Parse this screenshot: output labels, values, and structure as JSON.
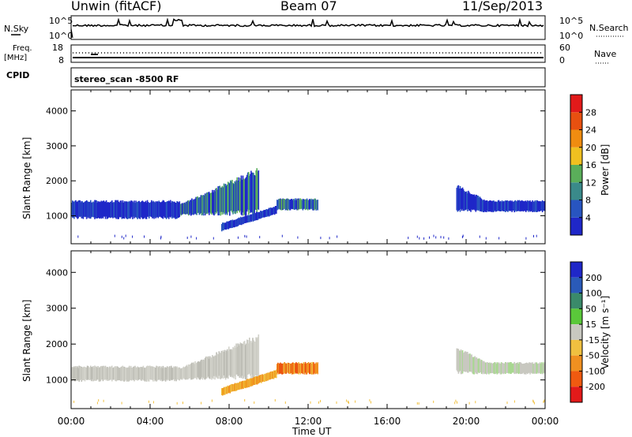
{
  "header": {
    "station": "Unwin (fitACF)",
    "beam": "Beam 07",
    "date": "11/Sep/2013"
  },
  "panels": {
    "nsky": {
      "left_label": "N.Sky",
      "right_label": "N.Search",
      "left_ticks": [
        "10^5",
        "10^0"
      ],
      "right_ticks": [
        "10^5",
        "10^0"
      ]
    },
    "freq": {
      "left_label_1": "Freq.",
      "left_label_2": "[MHz]",
      "left_ticks": [
        "18",
        "8"
      ],
      "right_ticks": [
        "60",
        "0"
      ],
      "right_label": "Nave"
    },
    "cpid": {
      "label": "CPID",
      "value": "stereo_scan -8500 RF"
    }
  },
  "chart_data": [
    {
      "type": "heatmap",
      "name": "power-panel",
      "xlabel": "",
      "ylabel": "Slant Range [km]",
      "ylim": [
        200,
        4600
      ],
      "yticks": [
        1000,
        2000,
        3000,
        4000
      ],
      "xlim": [
        0,
        24
      ],
      "colorbar": {
        "label": "Power [dB]",
        "ticks": [
          "4",
          "8",
          "12",
          "16",
          "20",
          "24",
          "28"
        ],
        "colors": [
          "#1f27c8",
          "#2855c0",
          "#3a8a8a",
          "#5aae5a",
          "#f0c020",
          "#f08c10",
          "#e85010",
          "#e21a1a"
        ]
      },
      "regions": [
        {
          "x_start": 0.0,
          "x_end": 5.5,
          "range_low": 900,
          "range_high": 1450,
          "level": "blue"
        },
        {
          "x_start": 5.5,
          "x_end": 9.5,
          "range_low": 1000,
          "range_high": 2400,
          "level": "blue-green"
        },
        {
          "x_start": 7.6,
          "x_end": 10.4,
          "range_low": 550,
          "range_high": 1200,
          "level": "blue"
        },
        {
          "x_start": 10.4,
          "x_end": 12.5,
          "range_low": 1150,
          "range_high": 1500,
          "level": "blue-green"
        },
        {
          "x_start": 19.5,
          "x_end": 24.0,
          "range_low": 1100,
          "range_high": 1900,
          "level": "blue"
        }
      ]
    },
    {
      "type": "heatmap",
      "name": "velocity-panel",
      "xlabel": "Time UT",
      "ylabel": "Slant Range [km]",
      "ylim": [
        200,
        4600
      ],
      "yticks": [
        1000,
        2000,
        3000,
        4000
      ],
      "xlim": [
        0,
        24
      ],
      "xticks": [
        "00:00",
        "04:00",
        "08:00",
        "12:00",
        "16:00",
        "20:00",
        "00:00"
      ],
      "colorbar": {
        "label": "Velocity [m s⁻¹]",
        "ticks": [
          "200",
          "100",
          "50",
          "15",
          "-15",
          "-50",
          "-100",
          "-200"
        ],
        "colors": [
          "#1f27c8",
          "#2a5ab8",
          "#3a8a6a",
          "#5ac83a",
          "#c8c8c0",
          "#f0c040",
          "#f09020",
          "#f05a10",
          "#e21a1a"
        ]
      },
      "regions": [
        {
          "x_start": 0.0,
          "x_end": 5.5,
          "range_low": 950,
          "range_high": 1400,
          "level": "grey"
        },
        {
          "x_start": 5.5,
          "x_end": 9.5,
          "range_low": 1000,
          "range_high": 2300,
          "level": "grey"
        },
        {
          "x_start": 7.6,
          "x_end": 10.4,
          "range_low": 550,
          "range_high": 1150,
          "level": "orange"
        },
        {
          "x_start": 10.4,
          "x_end": 12.5,
          "range_low": 1150,
          "range_high": 1500,
          "level": "red-orange"
        },
        {
          "x_start": 19.5,
          "x_end": 24.0,
          "range_low": 1150,
          "range_high": 1900,
          "level": "grey-green"
        }
      ]
    }
  ]
}
